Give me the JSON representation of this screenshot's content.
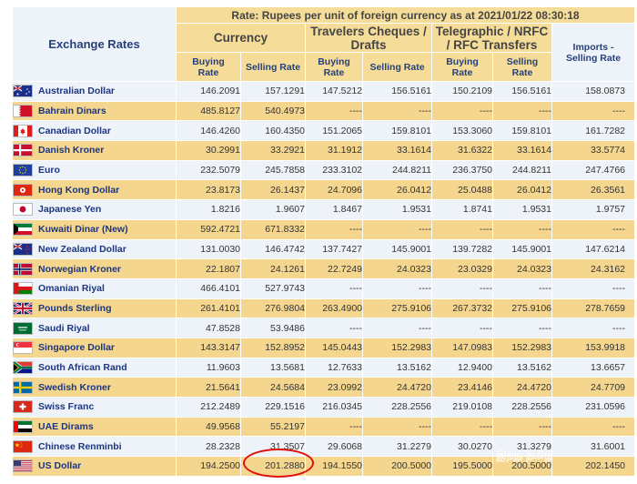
{
  "header": {
    "title": "Exchange Rates",
    "rate_caption": "Rate: Rupees per unit of foreign currency as at 2021/01/22  08:30:18",
    "groups": {
      "currency": "Currency",
      "travelers_line1": "Travelers Cheques /",
      "travelers_line2": "Drafts",
      "telegraphic_line1": "Telegraphic / NRFC",
      "telegraphic_line2": "/ RFC Transfers"
    },
    "cols": {
      "cur_buy": [
        "Buying",
        "Rate"
      ],
      "cur_sell": [
        "Selling Rate"
      ],
      "tc_buy": [
        "Buying",
        "Rate"
      ],
      "tc_sell": [
        "Selling Rate"
      ],
      "tt_buy": [
        "Buying",
        "Rate"
      ],
      "tt_sell": [
        "Selling",
        "Rate"
      ],
      "imports": [
        "Imports -",
        "Selling Rate"
      ]
    }
  },
  "rows": [
    {
      "name": "Australian Dollar",
      "flag": "au",
      "cur_buy": "146.2091",
      "cur_sell": "157.1291",
      "tc_buy": "147.5212",
      "tc_sell": "156.5161",
      "tt_buy": "150.2109",
      "tt_sell": "156.5161",
      "imports": "158.0873"
    },
    {
      "name": "Bahrain Dinars",
      "flag": "bh",
      "cur_buy": "485.8127",
      "cur_sell": "540.4973",
      "tc_buy": "----",
      "tc_sell": "----",
      "tt_buy": "----",
      "tt_sell": "----",
      "imports": "----"
    },
    {
      "name": "Canadian Dollar",
      "flag": "ca",
      "cur_buy": "146.4260",
      "cur_sell": "160.4350",
      "tc_buy": "151.2065",
      "tc_sell": "159.8101",
      "tt_buy": "153.3060",
      "tt_sell": "159.8101",
      "imports": "161.7282"
    },
    {
      "name": "Danish Kroner",
      "flag": "dk",
      "cur_buy": "30.2991",
      "cur_sell": "33.2921",
      "tc_buy": "31.1912",
      "tc_sell": "33.1614",
      "tt_buy": "31.6322",
      "tt_sell": "33.1614",
      "imports": "33.5774"
    },
    {
      "name": "Euro",
      "flag": "eu",
      "cur_buy": "232.5079",
      "cur_sell": "245.7858",
      "tc_buy": "233.3102",
      "tc_sell": "244.8211",
      "tt_buy": "236.3750",
      "tt_sell": "244.8211",
      "imports": "247.4766"
    },
    {
      "name": "Hong Kong Dollar",
      "flag": "hk",
      "cur_buy": "23.8173",
      "cur_sell": "26.1437",
      "tc_buy": "24.7096",
      "tc_sell": "26.0412",
      "tt_buy": "25.0488",
      "tt_sell": "26.0412",
      "imports": "26.3561"
    },
    {
      "name": "Japanese Yen",
      "flag": "jp",
      "cur_buy": "1.8216",
      "cur_sell": "1.9607",
      "tc_buy": "1.8467",
      "tc_sell": "1.9531",
      "tt_buy": "1.8741",
      "tt_sell": "1.9531",
      "imports": "1.9757"
    },
    {
      "name": "Kuwaiti Dinar (New)",
      "flag": "kw",
      "cur_buy": "592.4721",
      "cur_sell": "671.8332",
      "tc_buy": "----",
      "tc_sell": "----",
      "tt_buy": "----",
      "tt_sell": "----",
      "imports": "----"
    },
    {
      "name": "New Zealand Dollar",
      "flag": "nz",
      "cur_buy": "131.0030",
      "cur_sell": "146.4742",
      "tc_buy": "137.7427",
      "tc_sell": "145.9001",
      "tt_buy": "139.7282",
      "tt_sell": "145.9001",
      "imports": "147.6214"
    },
    {
      "name": "Norwegian Kroner",
      "flag": "no",
      "cur_buy": "22.1807",
      "cur_sell": "24.1261",
      "tc_buy": "22.7249",
      "tc_sell": "24.0323",
      "tt_buy": "23.0329",
      "tt_sell": "24.0323",
      "imports": "24.3162"
    },
    {
      "name": "Omanian Riyal",
      "flag": "om",
      "cur_buy": "466.4101",
      "cur_sell": "527.9743",
      "tc_buy": "----",
      "tc_sell": "----",
      "tt_buy": "----",
      "tt_sell": "----",
      "imports": "----"
    },
    {
      "name": "Pounds Sterling",
      "flag": "gb",
      "cur_buy": "261.4101",
      "cur_sell": "276.9804",
      "tc_buy": "263.4900",
      "tc_sell": "275.9106",
      "tt_buy": "267.3732",
      "tt_sell": "275.9106",
      "imports": "278.7659"
    },
    {
      "name": "Saudi Riyal",
      "flag": "sa",
      "cur_buy": "47.8528",
      "cur_sell": "53.9486",
      "tc_buy": "----",
      "tc_sell": "----",
      "tt_buy": "----",
      "tt_sell": "----",
      "imports": "----"
    },
    {
      "name": "Singapore Dollar",
      "flag": "sg",
      "cur_buy": "143.3147",
      "cur_sell": "152.8952",
      "tc_buy": "145.0443",
      "tc_sell": "152.2983",
      "tt_buy": "147.0983",
      "tt_sell": "152.2983",
      "imports": "153.9918"
    },
    {
      "name": "South African Rand",
      "flag": "za",
      "cur_buy": "11.9603",
      "cur_sell": "13.5681",
      "tc_buy": "12.7633",
      "tc_sell": "13.5162",
      "tt_buy": "12.9400",
      "tt_sell": "13.5162",
      "imports": "13.6657"
    },
    {
      "name": "Swedish Kroner",
      "flag": "se",
      "cur_buy": "21.5641",
      "cur_sell": "24.5684",
      "tc_buy": "23.0992",
      "tc_sell": "24.4720",
      "tt_buy": "23.4146",
      "tt_sell": "24.4720",
      "imports": "24.7709"
    },
    {
      "name": "Swiss Franc",
      "flag": "ch",
      "cur_buy": "212.2489",
      "cur_sell": "229.1516",
      "tc_buy": "216.0345",
      "tc_sell": "228.2556",
      "tt_buy": "219.0108",
      "tt_sell": "228.2556",
      "imports": "231.0596"
    },
    {
      "name": "UAE Dirams",
      "flag": "ae",
      "cur_buy": "49.9568",
      "cur_sell": "55.2197",
      "tc_buy": "----",
      "tc_sell": "----",
      "tt_buy": "----",
      "tt_sell": "----",
      "imports": "----"
    },
    {
      "name": "Chinese Renminbi",
      "flag": "cn",
      "cur_buy": "28.2328",
      "cur_sell": "31.3507",
      "tc_buy": "29.6068",
      "tc_sell": "31.2279",
      "tt_buy": "30.0270",
      "tt_sell": "31.3279",
      "imports": "31.6001"
    },
    {
      "name": "US Dollar",
      "flag": "us",
      "cur_buy": "194.2500",
      "cur_sell": "201.2880",
      "tc_buy": "194.1550",
      "tc_sell": "200.5000",
      "tt_buy": "195.5000",
      "tt_sell": "200.5000",
      "imports": "202.1450"
    }
  ],
  "watermark": "இந்து தமிழ்",
  "colors": {
    "header_gold": "#f5dc98",
    "row_light": "#eef3f9",
    "row_gold": "#f5d68e",
    "title_blue": "#27407a",
    "highlight_red": "#e01010"
  }
}
